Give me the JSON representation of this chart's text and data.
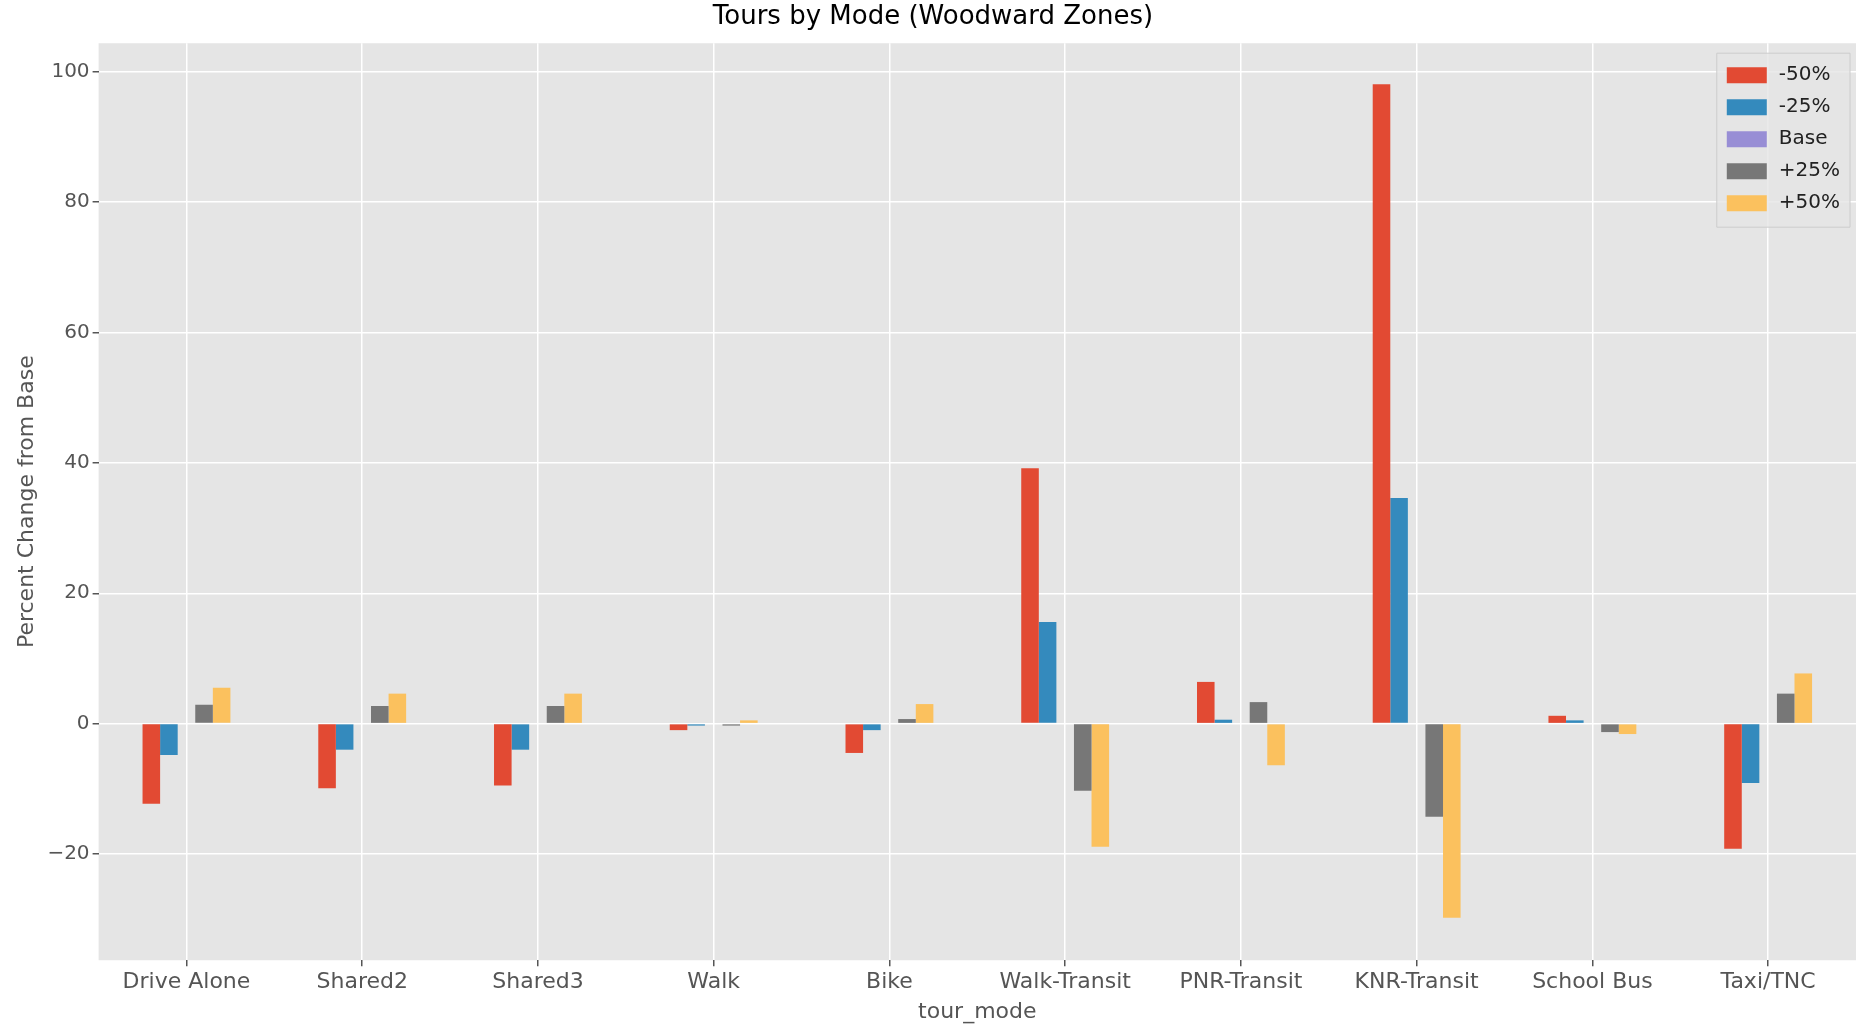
{
  "chart_data": {
    "type": "bar",
    "title": "Tours by Mode (Woodward Zones)",
    "xlabel": "tour_mode",
    "ylabel": "Percent Change from Base",
    "categories": [
      "Drive Alone",
      "Shared2",
      "Shared3",
      "Walk",
      "Bike",
      "Walk-Transit",
      "PNR-Transit",
      "KNR-Transit",
      "School Bus",
      "Taxi/TNC"
    ],
    "series": [
      {
        "name": "-50%",
        "color": "#e24a33",
        "values": [
          -12.3,
          -9.9,
          -9.5,
          -1.0,
          -4.5,
          39.2,
          6.4,
          98.1,
          1.2,
          -19.2
        ]
      },
      {
        "name": "-25%",
        "color": "#348abd",
        "values": [
          -4.8,
          -4.0,
          -4.0,
          -0.3,
          -1.0,
          15.6,
          0.6,
          34.6,
          0.5,
          -9.1
        ]
      },
      {
        "name": "Base",
        "color": "#988ed5",
        "values": [
          0,
          0,
          0,
          0,
          0,
          0,
          0,
          0,
          0,
          0
        ]
      },
      {
        "name": "+25%",
        "color": "#777777",
        "values": [
          2.9,
          2.7,
          2.7,
          -0.3,
          0.7,
          -10.3,
          3.3,
          -14.3,
          -1.3,
          4.6
        ]
      },
      {
        "name": "+50%",
        "color": "#fbc15e",
        "values": [
          5.5,
          4.6,
          4.6,
          0.5,
          3.0,
          -18.9,
          -6.4,
          -29.8,
          -1.6,
          7.7
        ]
      }
    ],
    "ylim": [
      -36.3,
      104.4
    ],
    "yticks": [
      -20,
      0,
      20,
      40,
      60,
      80,
      100
    ],
    "grid": true,
    "legend": "top right"
  }
}
